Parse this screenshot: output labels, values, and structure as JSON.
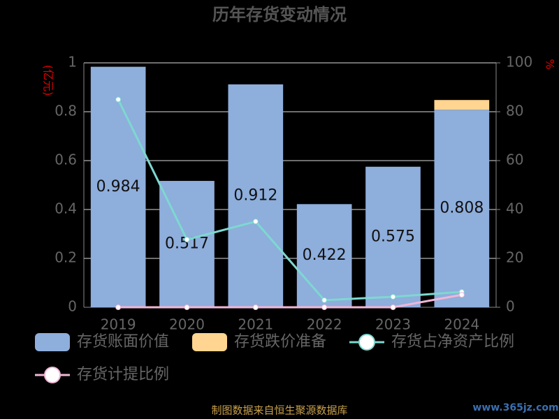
{
  "chart_data": {
    "type": "bar",
    "title": "历年存货变动情况",
    "y_label": "(亿元)",
    "y2_label": "%",
    "categories": [
      "2019",
      "2020",
      "2021",
      "2022",
      "2023",
      "2024"
    ],
    "series": [
      {
        "name": "存货账面价值",
        "type": "bar",
        "color": "#8eaedc",
        "values": [
          0.984,
          0.517,
          0.912,
          0.422,
          0.575,
          0.808
        ]
      },
      {
        "name": "存货跌价准备",
        "type": "bar",
        "color": "#ffd591",
        "values": [
          0,
          0,
          0,
          0,
          0,
          0.04
        ]
      },
      {
        "name": "存货占净资产比例",
        "type": "line",
        "axis": "y2",
        "color": "#7dd8d0",
        "values": [
          85,
          27.7,
          35.1,
          2.9,
          4.3,
          6.3
        ]
      },
      {
        "name": "存货计提比例",
        "type": "line",
        "axis": "y2",
        "color": "#f0b6d6",
        "values": [
          0,
          0,
          0,
          0,
          0,
          5.1
        ]
      }
    ],
    "ylim": [
      0,
      1
    ],
    "yticks": [
      0,
      0.2,
      0.4,
      0.6,
      0.8,
      1
    ],
    "y2lim": [
      0,
      100
    ],
    "y2ticks": [
      0,
      20,
      40,
      60,
      80,
      100
    ],
    "grid": true,
    "footer": "制图数据来自恒生聚源数据库",
    "watermark": "www.365jz.com"
  }
}
